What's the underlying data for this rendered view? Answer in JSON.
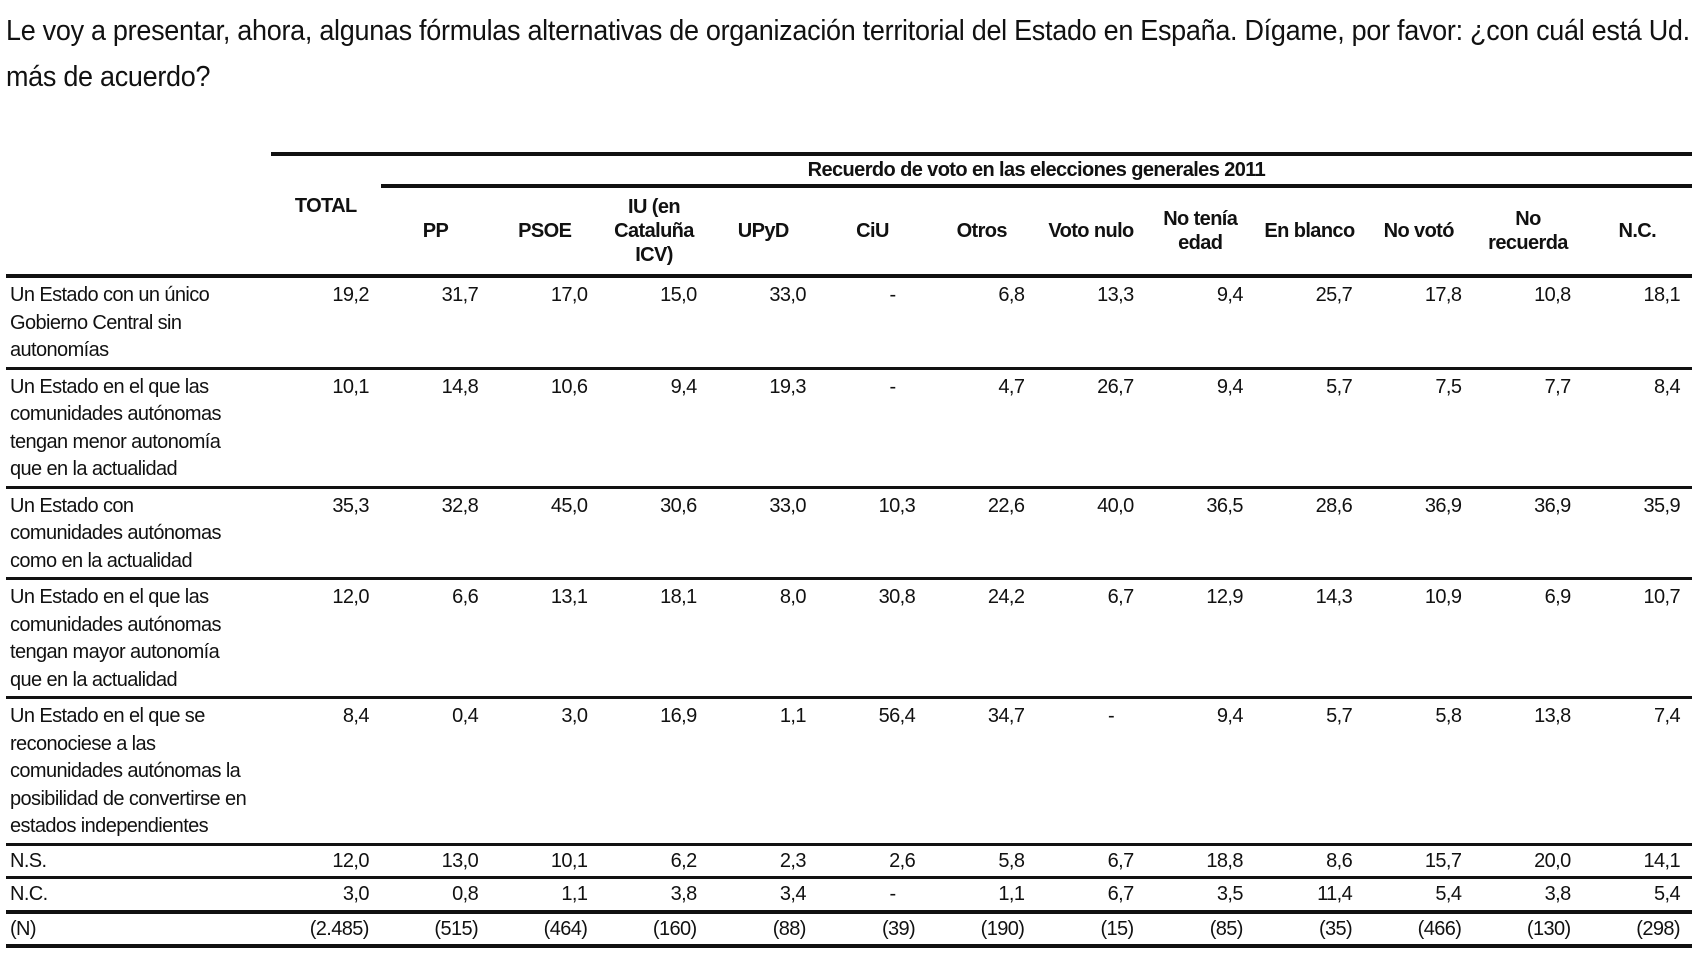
{
  "question": "Le voy a presentar, ahora, algunas fórmulas alternativas de organización territorial del Estado en España. Dígame, por favor: ¿con cuál está Ud. más de acuerdo?",
  "table": {
    "group_header": "Recuerdo de voto en las elecciones generales 2011",
    "total_header": "TOTAL",
    "columns": [
      "PP",
      "PSOE",
      "IU (en Cataluña ICV)",
      "UPyD",
      "CiU",
      "Otros",
      "Voto nulo",
      "No tenía edad",
      "En blanco",
      "No votó",
      "No recuerda",
      "N.C."
    ],
    "rows": [
      {
        "label": "Un Estado con un único Gobierno Central sin autonomías",
        "total": "19,2",
        "values": [
          "31,7",
          "17,0",
          "15,0",
          "33,0",
          "-",
          "6,8",
          "13,3",
          "9,4",
          "25,7",
          "17,8",
          "10,8",
          "18,1"
        ]
      },
      {
        "label": "Un Estado en el que las comunidades autónomas tengan menor autonomía que en la actualidad",
        "total": "10,1",
        "values": [
          "14,8",
          "10,6",
          "9,4",
          "19,3",
          "-",
          "4,7",
          "26,7",
          "9,4",
          "5,7",
          "7,5",
          "7,7",
          "8,4"
        ]
      },
      {
        "label": "Un Estado con comunidades autónomas como en la actualidad",
        "total": "35,3",
        "values": [
          "32,8",
          "45,0",
          "30,6",
          "33,0",
          "10,3",
          "22,6",
          "40,0",
          "36,5",
          "28,6",
          "36,9",
          "36,9",
          "35,9"
        ]
      },
      {
        "label": "Un Estado en el que las comunidades autónomas tengan mayor autonomía que en la actualidad",
        "total": "12,0",
        "values": [
          "6,6",
          "13,1",
          "18,1",
          "8,0",
          "30,8",
          "24,2",
          "6,7",
          "12,9",
          "14,3",
          "10,9",
          "6,9",
          "10,7"
        ]
      },
      {
        "label": "Un Estado en el que se reconociese a las comunidades autónomas la posibilidad de convertirse en estados independientes",
        "total": "8,4",
        "values": [
          "0,4",
          "3,0",
          "16,9",
          "1,1",
          "56,4",
          "34,7",
          "-",
          "9,4",
          "5,7",
          "5,8",
          "13,8",
          "7,4"
        ]
      },
      {
        "label": "N.S.",
        "total": "12,0",
        "values": [
          "13,0",
          "10,1",
          "6,2",
          "2,3",
          "2,6",
          "5,8",
          "6,7",
          "18,8",
          "8,6",
          "15,7",
          "20,0",
          "14,1"
        ]
      },
      {
        "label": "N.C.",
        "total": "3,0",
        "values": [
          "0,8",
          "1,1",
          "3,8",
          "3,4",
          "-",
          "1,1",
          "6,7",
          "3,5",
          "11,4",
          "5,4",
          "3,8",
          "5,4"
        ]
      },
      {
        "label": "(N)",
        "total": "(2.485)",
        "values": [
          "(515)",
          "(464)",
          "(160)",
          "(88)",
          "(39)",
          "(190)",
          "(15)",
          "(85)",
          "(35)",
          "(466)",
          "(130)",
          "(298)"
        ]
      }
    ]
  }
}
